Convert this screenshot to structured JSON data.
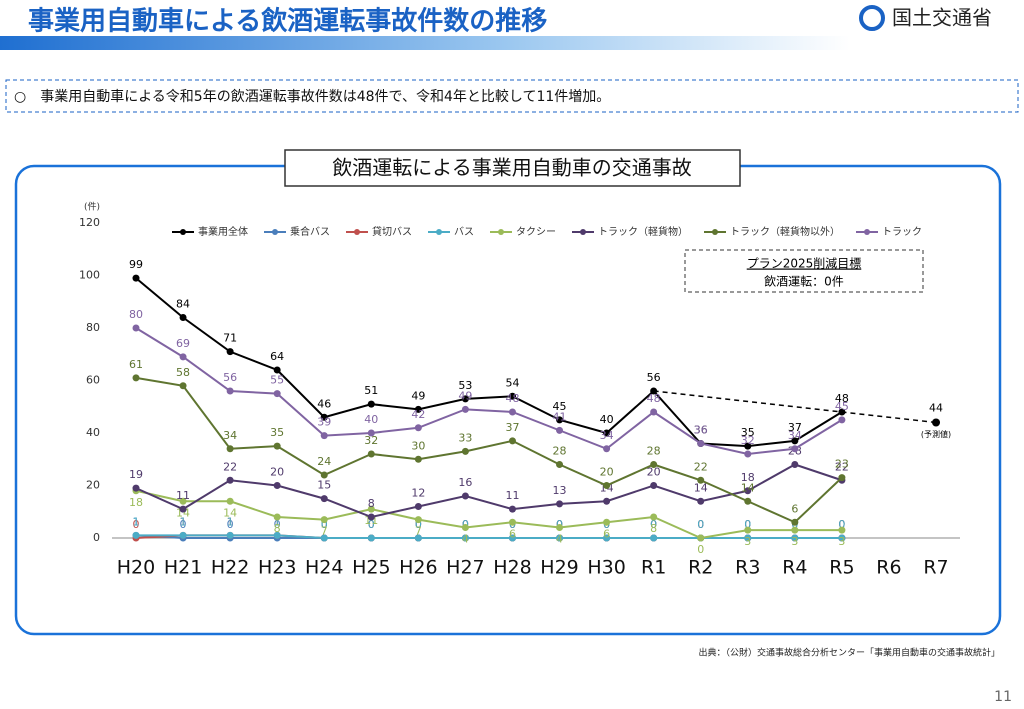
{
  "header": {
    "title": "事業用自動車による飲酒運転事故件数の推移",
    "logo": "国土交通省"
  },
  "summary": "○　事業用自動車による令和5年の飲酒運転事故件数は48件で、令和4年と比較して11件増加。",
  "chart_data": {
    "type": "line",
    "title": "飲酒運転による事業用自動車の交通事故",
    "y_label": "(件)",
    "categories": [
      "H20",
      "H21",
      "H22",
      "H23",
      "H24",
      "H25",
      "H26",
      "H27",
      "H28",
      "H29",
      "H30",
      "R1",
      "R2",
      "R3",
      "R4",
      "R5",
      "R6",
      "R7"
    ],
    "ylim": [
      0,
      120
    ],
    "yticks": [
      0,
      20,
      40,
      60,
      80,
      100,
      120
    ],
    "grid": false,
    "series": [
      {
        "name": "事業用全体",
        "color": "#000000",
        "values": [
          99,
          84,
          71,
          64,
          46,
          51,
          49,
          53,
          54,
          45,
          40,
          56,
          36,
          35,
          37,
          48,
          null,
          null
        ]
      },
      {
        "name": "乗合バス",
        "color": "#4a7ebb",
        "values": [
          1,
          0,
          0,
          0,
          0,
          0,
          0,
          0,
          0,
          0,
          0,
          0,
          0,
          0,
          0,
          0,
          null,
          null
        ]
      },
      {
        "name": "貸切バス",
        "color": "#c0504d",
        "values": [
          0,
          1,
          1,
          1,
          0,
          0,
          0,
          0,
          0,
          0,
          0,
          0,
          0,
          0,
          0,
          0,
          null,
          null
        ]
      },
      {
        "name": "バス",
        "color": "#4bacc6",
        "values": [
          1,
          1,
          1,
          1,
          0,
          0,
          0,
          0,
          0,
          0,
          0,
          0,
          0,
          0,
          0,
          0,
          null,
          null
        ]
      },
      {
        "name": "タクシー",
        "color": "#9bbb59",
        "values": [
          18,
          14,
          14,
          8,
          7,
          11,
          7,
          4,
          6,
          4,
          6,
          8,
          0,
          3,
          3,
          3,
          null,
          null
        ]
      },
      {
        "name": "トラック（軽貨物）",
        "color": "#4f3a6b",
        "values": [
          19,
          11,
          22,
          20,
          15,
          8,
          12,
          16,
          11,
          13,
          14,
          20,
          14,
          18,
          28,
          22,
          null,
          null
        ]
      },
      {
        "name": "トラック（軽貨物以外）",
        "color": "#5f7530",
        "values": [
          61,
          58,
          34,
          35,
          24,
          32,
          30,
          33,
          37,
          28,
          20,
          28,
          22,
          14,
          6,
          23,
          null,
          null
        ]
      },
      {
        "name": "トラック",
        "color": "#8064a2",
        "values": [
          80,
          69,
          56,
          55,
          39,
          40,
          42,
          49,
          48,
          41,
          34,
          48,
          36,
          32,
          34,
          45,
          null,
          null
        ]
      }
    ],
    "forecast": {
      "x": [
        "R1",
        "R7"
      ],
      "values": [
        56,
        44
      ],
      "label": "(予測値)",
      "color": "#000000"
    },
    "target_box": [
      "プラン2025削減目標",
      "飲酒運転：0件"
    ]
  },
  "source": "出典：（公財）交通事故総合分析センター「事業用自動車の交通事故統計」",
  "page_number": "11"
}
